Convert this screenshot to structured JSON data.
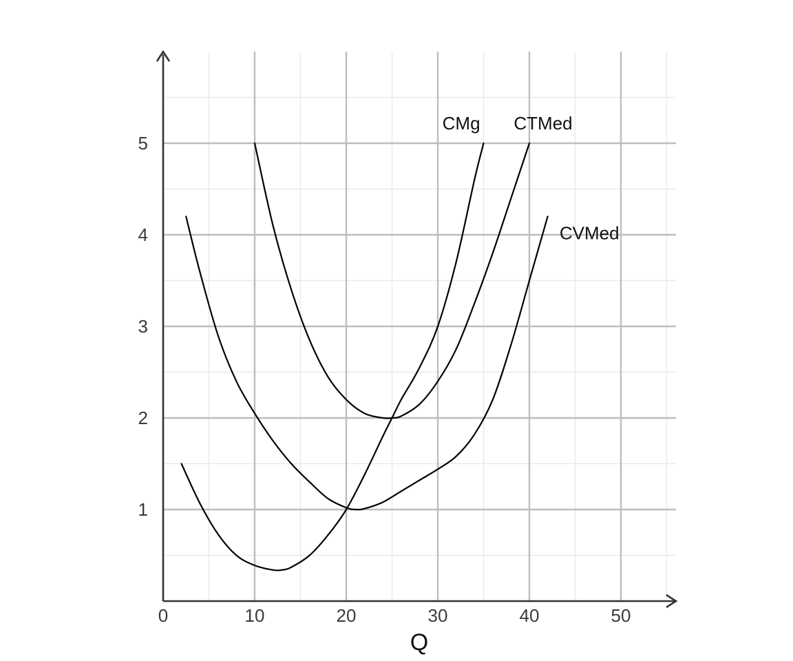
{
  "chart_data": {
    "type": "line",
    "title": "",
    "xlabel": "Q",
    "ylabel": "",
    "xlim": [
      0,
      55
    ],
    "ylim": [
      0,
      6
    ],
    "x_ticks": [
      0,
      10,
      20,
      30,
      40,
      50
    ],
    "y_ticks": [
      1,
      2,
      3,
      4,
      5
    ],
    "x_tick_labels": [
      "0",
      "10",
      "20",
      "30",
      "40",
      "50"
    ],
    "y_tick_labels": [
      "1",
      "2",
      "3",
      "4",
      "5"
    ],
    "grid": true,
    "minor_grid_step": {
      "x": 5,
      "y": 0.5
    },
    "colors": {
      "curve": "#000000",
      "axis": "#333333",
      "grid_major": "#bdbdbd",
      "grid_minor": "#e6e6e6"
    },
    "series": [
      {
        "name": "CMg",
        "x": [
          2,
          4,
          6,
          8,
          10,
          12,
          13,
          14,
          16,
          18,
          20,
          22,
          24,
          25,
          26,
          28,
          30,
          32,
          34,
          35
        ],
        "y": [
          1.5,
          1.07,
          0.73,
          0.5,
          0.39,
          0.34,
          0.34,
          0.37,
          0.5,
          0.72,
          1.0,
          1.38,
          1.8,
          2.0,
          2.2,
          2.55,
          3.0,
          3.7,
          4.6,
          5.0
        ]
      },
      {
        "name": "CTMed",
        "x": [
          10,
          12,
          14,
          16,
          18,
          20,
          22,
          24,
          25,
          26,
          28,
          30,
          32,
          34,
          36,
          38,
          40
        ],
        "y": [
          5.0,
          4.1,
          3.4,
          2.85,
          2.45,
          2.2,
          2.05,
          2.0,
          2.0,
          2.02,
          2.15,
          2.4,
          2.75,
          3.25,
          3.8,
          4.4,
          5.0
        ]
      },
      {
        "name": "CVMed",
        "x": [
          2.5,
          4,
          6,
          8,
          10,
          12,
          14,
          16,
          18,
          20,
          21,
          22,
          24,
          26,
          28,
          30,
          32,
          34,
          36,
          38,
          40,
          42
        ],
        "y": [
          4.2,
          3.6,
          2.9,
          2.4,
          2.05,
          1.75,
          1.5,
          1.3,
          1.12,
          1.02,
          1.0,
          1.01,
          1.08,
          1.2,
          1.32,
          1.44,
          1.58,
          1.82,
          2.2,
          2.8,
          3.5,
          4.2
        ]
      }
    ],
    "annotations": [
      {
        "text": "CMg",
        "series": "CMg",
        "x": 30.5,
        "y": 5.15
      },
      {
        "text": "CTMed",
        "series": "CTMed",
        "x": 38.3,
        "y": 5.15
      },
      {
        "text": "CVMed",
        "series": "CVMed",
        "x": 43.3,
        "y": 3.95
      }
    ]
  }
}
